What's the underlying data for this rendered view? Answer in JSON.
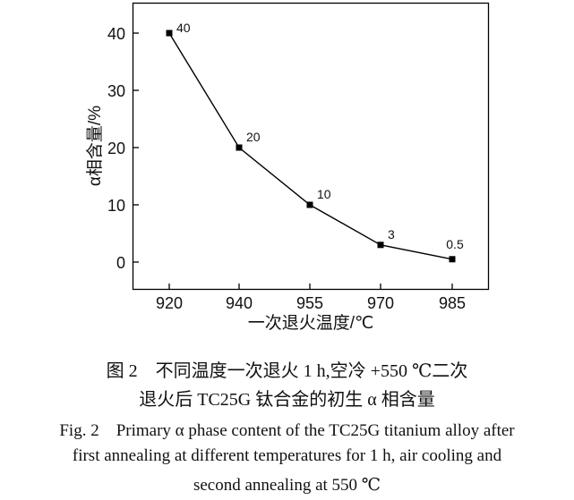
{
  "chart_data": {
    "type": "line",
    "categories": [
      "920",
      "940",
      "955",
      "970",
      "985"
    ],
    "series": [
      {
        "values": [
          40,
          20,
          10,
          3,
          0.5
        ]
      }
    ],
    "data_labels": [
      "40",
      "20",
      "10",
      "3",
      "0.5"
    ],
    "xlabel": "一次退火温度/℃",
    "ylabel": "α相含量/%",
    "yticks": [
      "0",
      "10",
      "20",
      "30",
      "40"
    ],
    "ylim": [
      -5,
      45
    ],
    "grid": false,
    "marker": "square",
    "color": "#000000"
  },
  "caption": {
    "zh_line1": "图 2　不同温度一次退火 1 h,空冷 +550 ℃二次",
    "zh_line2": "退火后 TC25G 钛合金的初生 α 相含量",
    "en_line1": "Fig. 2　Primary α phase content of the TC25G titanium alloy after",
    "en_line2": "first annealing at different temperatures for 1 h, air cooling and",
    "en_line3": "second annealing at 550 ℃"
  }
}
